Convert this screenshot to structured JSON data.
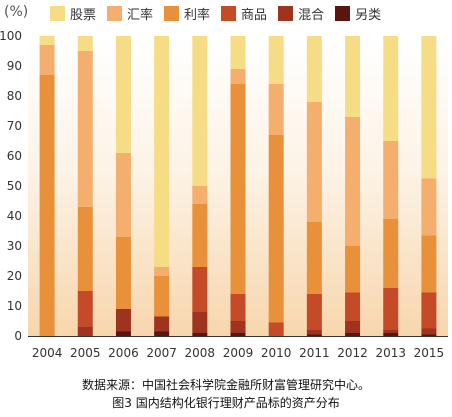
{
  "chart_data": {
    "type": "bar",
    "stacked": true,
    "ylabel": "(%)",
    "ylim": [
      0,
      100
    ],
    "yticks": [
      0,
      10,
      20,
      30,
      40,
      50,
      60,
      70,
      80,
      90,
      100
    ],
    "categories": [
      "2004",
      "2005",
      "2006",
      "2007",
      "2008",
      "2009",
      "2010",
      "2011",
      "2012",
      "2013",
      "2015"
    ],
    "series": [
      {
        "name": "另类",
        "color": "#5a1510",
        "values": [
          0,
          0,
          1.5,
          1.5,
          1,
          1,
          0,
          0.5,
          1,
          1,
          0.5
        ]
      },
      {
        "name": "混合",
        "color": "#9e3420",
        "values": [
          0,
          3,
          7.5,
          5,
          7,
          4,
          0,
          1.5,
          4,
          1,
          2
        ]
      },
      {
        "name": "商品",
        "color": "#c44a28",
        "values": [
          0,
          12,
          0,
          0,
          15,
          9,
          4.5,
          12,
          9.5,
          14,
          12
        ]
      },
      {
        "name": "利率",
        "color": "#e9913a",
        "values": [
          87,
          28,
          24,
          13.5,
          21,
          70,
          62.5,
          24,
          15.5,
          23,
          19
        ]
      },
      {
        "name": "汇率",
        "color": "#f4ae6e",
        "values": [
          10,
          52,
          28,
          3,
          6,
          5,
          17,
          40,
          43,
          26,
          19
        ]
      },
      {
        "name": "股票",
        "color": "#f7dc86",
        "values": [
          3,
          5,
          39,
          77,
          50,
          11,
          16,
          22,
          27,
          35,
          47.5
        ]
      }
    ],
    "legend": {
      "position": "top",
      "order": [
        "股票",
        "汇率",
        "利率",
        "商品",
        "混合",
        "另类"
      ]
    },
    "grid": false
  },
  "source_text": "数据来源：中国社会科学院金融所财富管理研究中心。",
  "caption_text": "图3  国内结构化银行理财产品标的资产分布"
}
